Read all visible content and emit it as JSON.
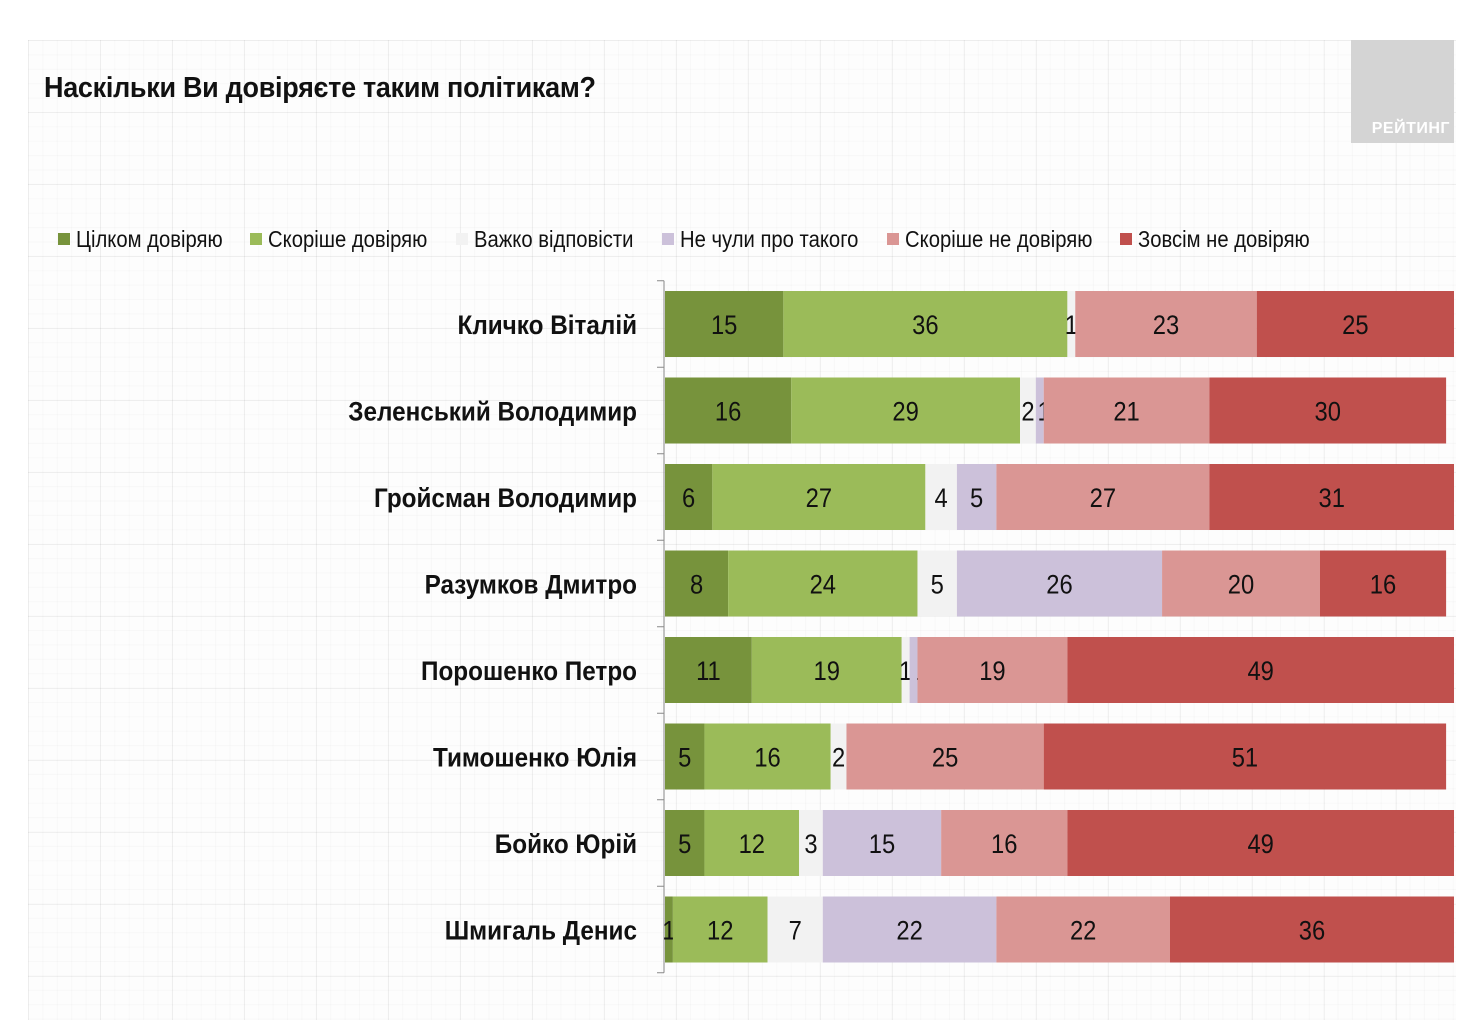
{
  "header": {
    "title": "Наскільки Ви довіряєте таким політикам?",
    "logo_text": "РЕЙТИНГ"
  },
  "colors": {
    "full_trust": "#77933c",
    "rather_trust": "#9bbb59",
    "hard_to_say": "#f2f2f2",
    "not_heard": "#ccc1da",
    "rather_not_trust": "#da9694",
    "no_trust": "#c0504d"
  },
  "chart_data": {
    "type": "bar",
    "orientation": "horizontal",
    "stacked": "100%",
    "title": "Наскільки Ви довіряєте таким політикам?",
    "xlabel": "",
    "ylabel": "",
    "xlim": [
      0,
      100
    ],
    "grid": false,
    "legend_position": "top",
    "categories": [
      "Кличко Віталій",
      "Зеленський Володимир",
      "Гройсман Володимир",
      "Разумков Дмитро",
      "Порошенко Петро",
      "Тимошенко Юлія",
      "Бойко Юрій",
      "Шмигаль Денис"
    ],
    "series": [
      {
        "name": "Цілком довіряю",
        "color_key": "full_trust",
        "values": [
          15,
          16,
          6,
          8,
          11,
          5,
          5,
          1
        ]
      },
      {
        "name": "Скоріше довіряю",
        "color_key": "rather_trust",
        "values": [
          36,
          29,
          27,
          24,
          19,
          16,
          12,
          12
        ]
      },
      {
        "name": "Важко відповісти",
        "color_key": "hard_to_say",
        "values": [
          1,
          2,
          4,
          5,
          1,
          2,
          3,
          7
        ]
      },
      {
        "name": "Не чули про такого",
        "color_key": "not_heard",
        "values": [
          0,
          1,
          5,
          26,
          1,
          0,
          15,
          22
        ]
      },
      {
        "name": "Скоріше не довіряю",
        "color_key": "rather_not_trust",
        "values": [
          23,
          21,
          27,
          20,
          19,
          25,
          16,
          22
        ]
      },
      {
        "name": "Зовсім не довіряю",
        "color_key": "no_trust",
        "values": [
          25,
          30,
          31,
          16,
          49,
          51,
          49,
          36
        ]
      }
    ]
  }
}
